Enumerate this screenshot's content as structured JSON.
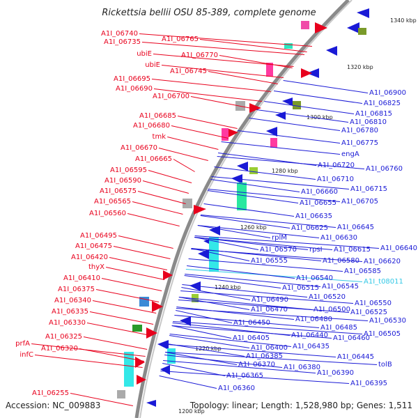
{
  "title": "Rickettsia bellii OSU 85-389, complete genome",
  "footer": {
    "accession": "Accession: NC_009883",
    "summary": "Topology: linear; Length: 1,528,980 bp; Genes: 1,511"
  },
  "colors": {
    "left_genes": "#e8001c",
    "right_genes": "#1a1ad6",
    "trna": "#33c8e6",
    "backbone": "#888888"
  },
  "ticks": [
    "1340 kbp",
    "1320 kbp",
    "1300 kbp",
    "1280 kbp",
    "1260 kbp",
    "1240 kbp",
    "1220 kbp",
    "1200 kbp"
  ],
  "left_labels": [
    "A1I_06740",
    "A1I_06765",
    "A1I_06735",
    "A1I_06770",
    "ubiE",
    "ubiE",
    "A1I_06745",
    "A1I_06695",
    "A1I_06690",
    "A1I_06700",
    "A1I_06685",
    "A1I_06680",
    "tmk",
    "A1I_06670",
    "A1I_06665",
    "A1I_06595",
    "A1I_06590",
    "A1I_06575",
    "A1I_06565",
    "A1I_06560",
    "A1I_06495",
    "A1I_06475",
    "A1I_06420",
    "thyX",
    "A1I_06410",
    "A1I_06375",
    "A1I_06340",
    "A1I_06335",
    "A1I_06330",
    "A1I_06325",
    "prfA",
    "A1I_06320",
    "infC",
    "A1I_06255"
  ],
  "right_labels": [
    "A1I_06900",
    "A1I_06825",
    "A1I_06815",
    "A1I_06810",
    "A1I_06780",
    "A1I_06775",
    "engA",
    "A1I_06720",
    "A1I_06760",
    "A1I_06710",
    "A1I_06715",
    "A1I_06660",
    "A1I_06655",
    "A1I_06705",
    "A1I_06635",
    "A1I_06625",
    "A1I_06645",
    "rplM",
    "A1I_06630",
    "A1I_06570",
    "rpsI",
    "A1I_06615",
    "A1I_06640",
    "A1I_06555",
    "A1I_06580",
    "A1I_06620",
    "A1I_06585",
    "A1I_t08011",
    "A1I_06540",
    "A1I_06515",
    "A1I_06545",
    "A1I_06520",
    "A1I_06490",
    "A1I_06550",
    "A1I_06470",
    "A1I_06500",
    "A1I_06525",
    "A1I_06480",
    "A1I_06530",
    "A1I_06450",
    "A1I_06485",
    "A1I_06440",
    "A1I_06505",
    "A1I_06460",
    "A1I_06405",
    "A1I_06435",
    "A1I_06400",
    "A1I_06445",
    "A1I_06385",
    "tolB",
    "A1I_06370",
    "A1I_06380",
    "A1I_06390",
    "A1I_06365",
    "A1I_06395",
    "A1I_06360"
  ]
}
